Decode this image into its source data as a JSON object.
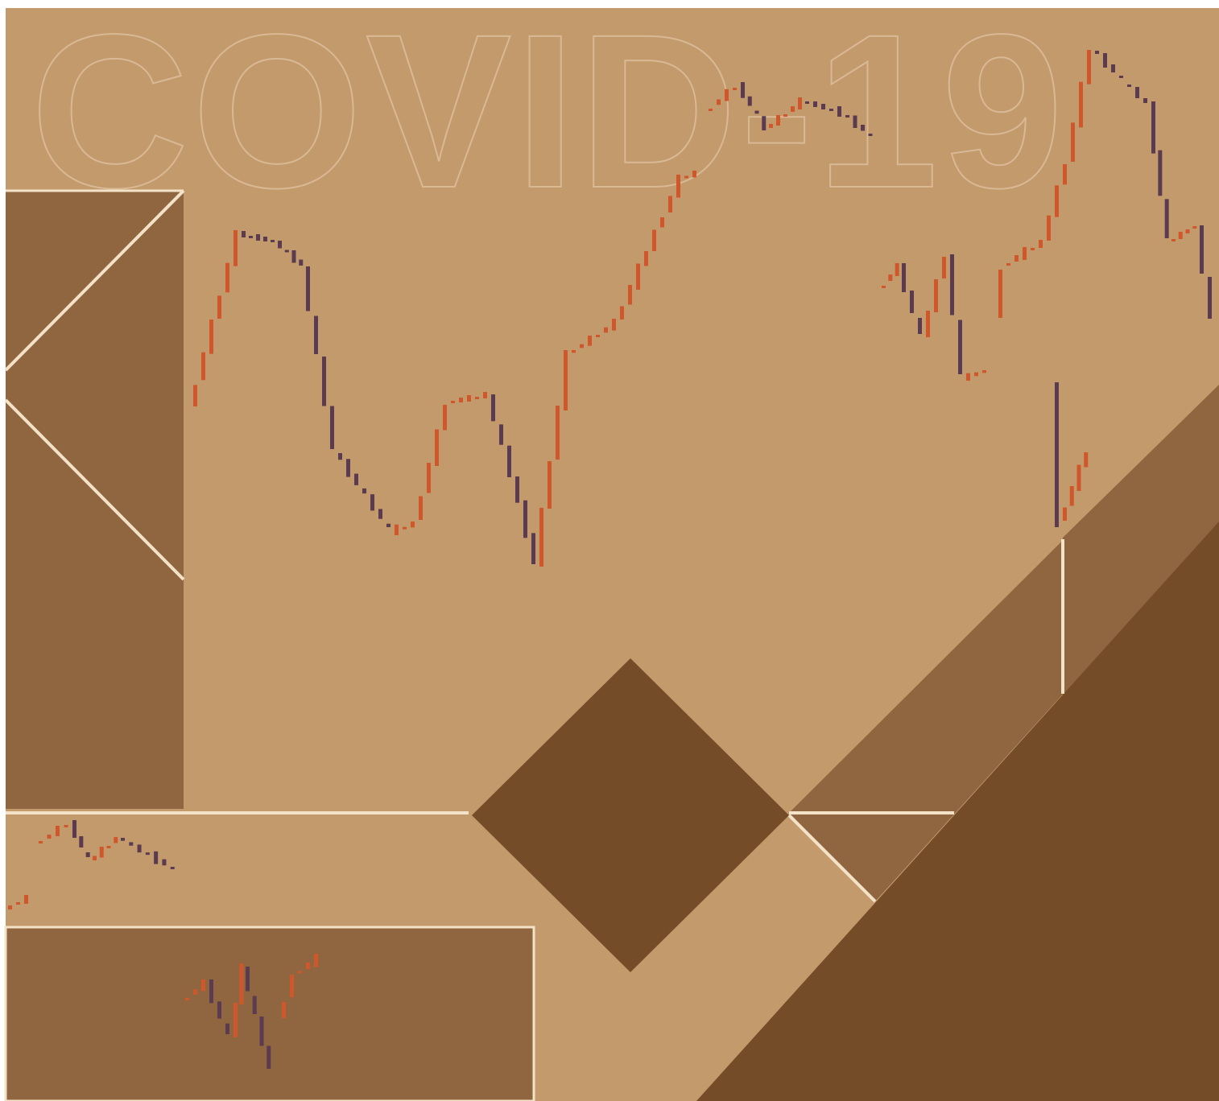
{
  "title": "COVID-19"
}
